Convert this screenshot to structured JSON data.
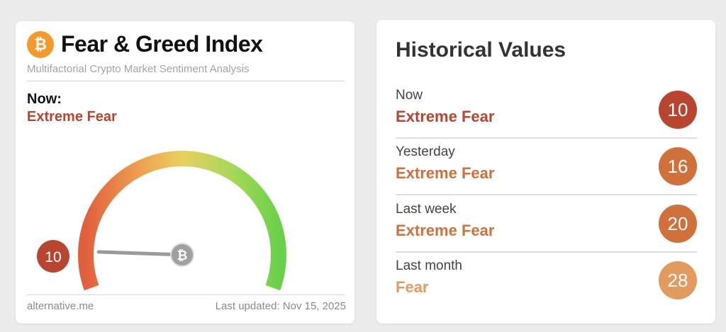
{
  "index_card": {
    "logo_icon": "bitcoin-icon",
    "title": "Fear & Greed Index",
    "subtitle": "Multifactorial Crypto Market Sentiment Analysis",
    "now_label": "Now:",
    "now_classification": "Extreme Fear",
    "now_value": "10",
    "gauge_min": 0,
    "gauge_max": 100,
    "value_color": "#b8452f",
    "footer_source": "alternative.me",
    "footer_updated": "Last updated: Nov 15, 2025"
  },
  "historical": {
    "title": "Historical Values",
    "rows": [
      {
        "label": "Now",
        "classification": "Extreme Fear",
        "value": "10",
        "color": "#b8452f"
      },
      {
        "label": "Yesterday",
        "classification": "Extreme Fear",
        "value": "16",
        "color": "#d0703a"
      },
      {
        "label": "Last week",
        "classification": "Extreme Fear",
        "value": "20",
        "color": "#d0703a"
      },
      {
        "label": "Last month",
        "classification": "Fear",
        "value": "28",
        "color": "#e39a5e"
      }
    ]
  }
}
